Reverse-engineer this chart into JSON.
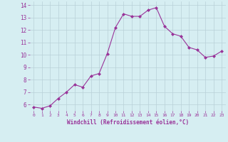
{
  "x": [
    0,
    1,
    2,
    3,
    4,
    5,
    6,
    7,
    8,
    9,
    10,
    11,
    12,
    13,
    14,
    15,
    16,
    17,
    18,
    19,
    20,
    21,
    22,
    23
  ],
  "y": [
    5.8,
    5.7,
    5.9,
    6.5,
    7.0,
    7.6,
    7.4,
    8.3,
    8.5,
    10.1,
    12.2,
    13.3,
    13.1,
    13.1,
    13.6,
    13.8,
    12.3,
    11.7,
    11.5,
    10.6,
    10.4,
    9.8,
    9.9,
    10.3
  ],
  "xlabel": "Windchill (Refroidissement éolien,°C)",
  "ylim": [
    5.5,
    14.3
  ],
  "xlim": [
    -0.5,
    23.5
  ],
  "yticks": [
    6,
    7,
    8,
    9,
    10,
    11,
    12,
    13,
    14
  ],
  "xticks": [
    0,
    1,
    2,
    3,
    4,
    5,
    6,
    7,
    8,
    9,
    10,
    11,
    12,
    13,
    14,
    15,
    16,
    17,
    18,
    19,
    20,
    21,
    22,
    23
  ],
  "line_color": "#993399",
  "marker_color": "#993399",
  "bg_color": "#d6eef2",
  "grid_color": "#b8d0d8",
  "axis_label_color": "#993399",
  "tick_label_color": "#993399"
}
